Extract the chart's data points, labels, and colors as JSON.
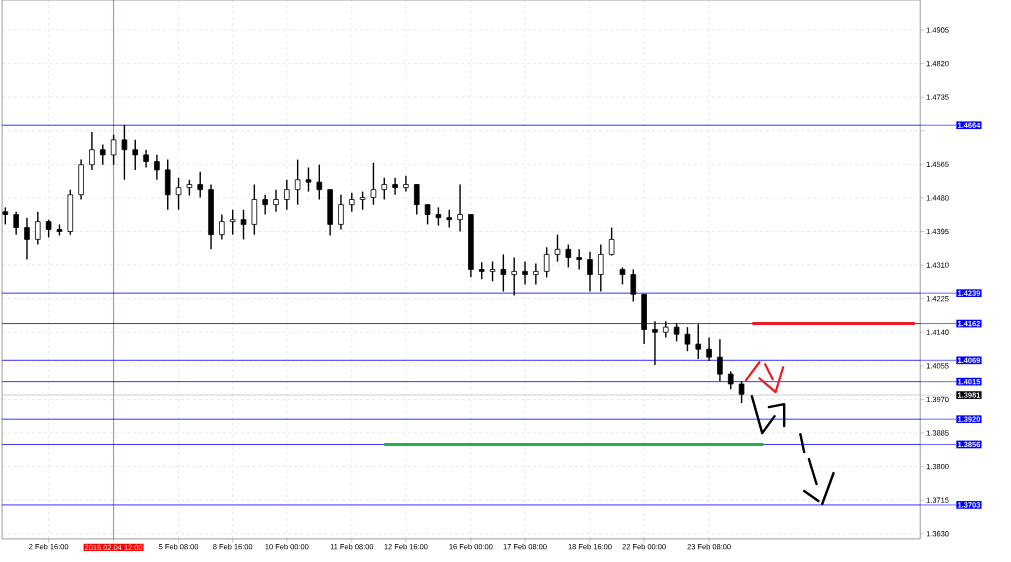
{
  "chart_data": {
    "type": "candlestick",
    "color": "#000000",
    "categories": [
      null,
      null,
      null,
      null,
      "2 Feb 16:00",
      null,
      null,
      null,
      null,
      null,
      "2016.02.04 12:00",
      null,
      null,
      null,
      null,
      null,
      "5 Feb 08:00",
      null,
      null,
      null,
      null,
      "8 Feb 16:00",
      null,
      null,
      null,
      null,
      "10 Feb 00:00",
      null,
      null,
      null,
      null,
      null,
      "11 Feb 08:00",
      null,
      null,
      null,
      null,
      "12 Feb 16:00",
      null,
      null,
      null,
      null,
      null,
      "16 Feb 00:00",
      null,
      null,
      null,
      null,
      "17 Feb 08:00",
      null,
      null,
      null,
      null,
      null,
      "18 Feb 16:00",
      null,
      null,
      null,
      null,
      "22 Feb 00:00",
      null,
      null,
      null,
      null,
      null,
      "23 Feb 08:00",
      null,
      null,
      null,
      null,
      null,
      null,
      null,
      null,
      null,
      null,
      null,
      null,
      null,
      null,
      null,
      null,
      null,
      null,
      null
    ],
    "ohlc": [
      [
        1.4445,
        1.4456,
        1.4413,
        1.4438
      ],
      [
        1.4438,
        1.4445,
        1.4387,
        1.4405
      ],
      [
        1.4405,
        1.443,
        1.4324,
        1.4375
      ],
      [
        1.4375,
        1.4445,
        1.4362,
        1.442
      ],
      [
        1.442,
        1.4425,
        1.438,
        1.44
      ],
      [
        1.44,
        1.4413,
        1.4385,
        1.4395
      ],
      [
        1.4395,
        1.4501,
        1.4387,
        1.4488
      ],
      [
        1.4488,
        1.4577,
        1.4476,
        1.4564
      ],
      [
        1.4564,
        1.4647,
        1.4551,
        1.4602
      ],
      [
        1.4602,
        1.4615,
        1.4564,
        1.4589
      ],
      [
        1.4589,
        1.464,
        1.4564,
        1.4627
      ],
      [
        1.4627,
        1.4665,
        1.4526,
        1.4602
      ],
      [
        1.4602,
        1.4627,
        1.4551,
        1.4589
      ],
      [
        1.4589,
        1.4602,
        1.4557,
        1.4572
      ],
      [
        1.4572,
        1.4589,
        1.4526,
        1.4551
      ],
      [
        1.4551,
        1.4577,
        1.445,
        1.4488
      ],
      [
        1.4488,
        1.4531,
        1.445,
        1.4506
      ],
      [
        1.4506,
        1.4526,
        1.4486,
        1.4514
      ],
      [
        1.4514,
        1.4546,
        1.4481,
        1.4501
      ],
      [
        1.4501,
        1.4514,
        1.435,
        1.4387
      ],
      [
        1.4387,
        1.4438,
        1.4375,
        1.442
      ],
      [
        1.442,
        1.445,
        1.4387,
        1.4425
      ],
      [
        1.4425,
        1.445,
        1.4375,
        1.4413
      ],
      [
        1.4413,
        1.4514,
        1.4387,
        1.4476
      ],
      [
        1.4476,
        1.4488,
        1.4438,
        1.4463
      ],
      [
        1.4463,
        1.4501,
        1.4445,
        1.4476
      ],
      [
        1.4476,
        1.4526,
        1.445,
        1.4501
      ],
      [
        1.4501,
        1.4577,
        1.4463,
        1.4526
      ],
      [
        1.4526,
        1.4557,
        1.4496,
        1.452
      ],
      [
        1.452,
        1.4564,
        1.4476,
        1.4501
      ],
      [
        1.4501,
        1.4501,
        1.4385,
        1.4413
      ],
      [
        1.4413,
        1.4488,
        1.44,
        1.4463
      ],
      [
        1.4463,
        1.4493,
        1.4445,
        1.4476
      ],
      [
        1.4476,
        1.4496,
        1.445,
        1.4481
      ],
      [
        1.4481,
        1.4569,
        1.4463,
        1.4501
      ],
      [
        1.4501,
        1.4531,
        1.4476,
        1.4514
      ],
      [
        1.4514,
        1.4531,
        1.4488,
        1.4506
      ],
      [
        1.4506,
        1.4536,
        1.4496,
        1.4514
      ],
      [
        1.4514,
        1.4514,
        1.4438,
        1.4463
      ],
      [
        1.4463,
        1.4463,
        1.4413,
        1.4438
      ],
      [
        1.4438,
        1.4456,
        1.441,
        1.443
      ],
      [
        1.443,
        1.445,
        1.4405,
        1.4425
      ],
      [
        1.4425,
        1.4514,
        1.4395,
        1.4438
      ],
      [
        1.4438,
        1.4438,
        1.4279,
        1.4299
      ],
      [
        1.4299,
        1.4317,
        1.4274,
        1.4294
      ],
      [
        1.4294,
        1.4319,
        1.4269,
        1.4299
      ],
      [
        1.4299,
        1.4337,
        1.4243,
        1.4286
      ],
      [
        1.4286,
        1.4329,
        1.4233,
        1.4294
      ],
      [
        1.4294,
        1.4319,
        1.4261,
        1.4286
      ],
      [
        1.4286,
        1.4314,
        1.4261,
        1.4294
      ],
      [
        1.4294,
        1.4355,
        1.4279,
        1.4337
      ],
      [
        1.4337,
        1.4387,
        1.4319,
        1.435
      ],
      [
        1.435,
        1.4362,
        1.4304,
        1.4329
      ],
      [
        1.4329,
        1.435,
        1.4299,
        1.4324
      ],
      [
        1.4324,
        1.4344,
        1.4243,
        1.4286
      ],
      [
        1.4286,
        1.4362,
        1.4243,
        1.4337
      ],
      [
        1.4337,
        1.4405,
        1.4334,
        1.4375
      ],
      [
        1.4299,
        1.4304,
        1.4261,
        1.4286
      ],
      [
        1.4286,
        1.4299,
        1.4218,
        1.4236
      ],
      [
        1.4236,
        1.4236,
        1.411,
        1.4147
      ],
      [
        1.4147,
        1.4168,
        1.4057,
        1.414
      ],
      [
        1.414,
        1.4168,
        1.4127,
        1.4153
      ],
      [
        1.4153,
        1.4163,
        1.4117,
        1.4135
      ],
      [
        1.4135,
        1.4153,
        1.4092,
        1.411
      ],
      [
        1.411,
        1.416,
        1.4072,
        1.4097
      ],
      [
        1.4097,
        1.4127,
        1.4067,
        1.4077
      ],
      [
        1.4077,
        1.4122,
        1.4016,
        1.4034
      ],
      [
        1.4034,
        1.4041,
        1.3996,
        1.4009
      ],
      [
        1.4009,
        1.4016,
        1.3961,
        1.3983
      ],
      null,
      null,
      null,
      null,
      null,
      null,
      null,
      null,
      null,
      null,
      null,
      null,
      null,
      null,
      null,
      null
    ],
    "series": [
      {
        "type": "line",
        "color": "#ed1c24",
        "values": [
          null,
          null,
          null,
          null,
          null,
          null,
          null,
          null,
          null,
          null,
          null,
          null,
          null,
          null,
          null,
          null,
          null,
          null,
          null,
          null,
          null,
          null,
          null,
          null,
          null,
          null,
          null,
          null,
          null,
          null,
          null,
          null,
          null,
          null,
          null,
          null,
          null,
          null,
          null,
          null,
          null,
          null,
          null,
          null,
          null,
          null,
          null,
          null,
          null,
          null,
          null,
          null,
          null,
          null,
          null,
          null,
          null,
          null,
          null,
          null,
          null,
          null,
          null,
          null,
          null,
          null,
          null,
          null,
          null,
          1.4162,
          1.4162,
          1.4162,
          1.4162,
          1.4162,
          1.4162,
          1.4162,
          1.4162,
          1.4162,
          1.4162,
          1.4162,
          1.4162,
          1.4162,
          1.4162,
          1.4162,
          1.4162
        ]
      },
      {
        "type": "line",
        "color": "#22b14c",
        "values": [
          null,
          null,
          null,
          null,
          null,
          null,
          null,
          null,
          null,
          null,
          null,
          null,
          null,
          null,
          null,
          null,
          null,
          null,
          null,
          null,
          null,
          null,
          null,
          null,
          null,
          null,
          null,
          null,
          null,
          null,
          null,
          null,
          null,
          null,
          null,
          1.3856,
          1.3856,
          1.3856,
          1.3856,
          1.3856,
          1.3856,
          1.3856,
          1.3856,
          1.3856,
          1.3856,
          1.3856,
          1.3856,
          1.3856,
          1.3856,
          1.3856,
          1.3856,
          1.3856,
          1.3856,
          1.3856,
          1.3856,
          1.3856,
          1.3856,
          1.3856,
          1.3856,
          1.3856,
          1.3856,
          1.3856,
          1.3856,
          1.3856,
          1.3856,
          1.3856,
          1.3856,
          1.3856,
          1.3856,
          1.3856,
          1.3856,
          null,
          null,
          null,
          null,
          null,
          null,
          null,
          null,
          null,
          null,
          null,
          null,
          null,
          null
        ]
      }
    ],
    "ylim": [
      1.3617,
      1.4981
    ],
    "yticks": [
      {
        "value": 1.363,
        "label": "1.3630"
      },
      {
        "value": 1.3715,
        "label": "1.3715"
      },
      {
        "value": 1.38,
        "label": "1.3800"
      },
      {
        "value": 1.3885,
        "label": "1.3885"
      },
      {
        "value": 1.397,
        "label": "1.3970"
      },
      {
        "value": 1.4055,
        "label": "1.4055"
      },
      {
        "value": 1.414,
        "label": "1.4140"
      },
      {
        "value": 1.4225,
        "label": "1.4225"
      },
      {
        "value": 1.431,
        "label": "1.4310"
      },
      {
        "value": 1.4395,
        "label": "1.4395"
      },
      {
        "value": 1.448,
        "label": "1.4480"
      },
      {
        "value": 1.4565,
        "label": "1.4565"
      },
      {
        "value": 1.465,
        "label": null
      },
      {
        "value": 1.4735,
        "label": "1.4735"
      },
      {
        "value": 1.482,
        "label": "1.4820"
      },
      {
        "value": 1.4905,
        "label": "1.4905"
      }
    ],
    "grid": true,
    "ref_lines": [
      {
        "axis": "x",
        "value": "2016.02.04 12:00",
        "color": "#ff0000"
      },
      {
        "axis": "y",
        "value": 1.4664,
        "label": "1.4664",
        "color": "#0000ff"
      },
      {
        "axis": "y",
        "value": 1.4239,
        "label": "1.4239",
        "color": "#0000ff"
      },
      {
        "axis": "y",
        "value": 1.4162,
        "label": "1.4162",
        "color": "#0000ff"
      },
      {
        "axis": "y",
        "value": 1.4069,
        "label": "1.4069",
        "color": "#0000ff"
      },
      {
        "axis": "y",
        "value": 1.4015,
        "label": "1.4015",
        "color": "#0000ff"
      },
      {
        "axis": "y",
        "value": 1.3981,
        "label": "1.3981",
        "color": "#c0c0c0"
      },
      {
        "axis": "y",
        "value": 1.392,
        "label": "1.3920",
        "color": "#0000ff"
      },
      {
        "axis": "y",
        "value": 1.3856,
        "label": "1.3856",
        "color": "#0000ff"
      },
      {
        "axis": "y",
        "value": 1.3703,
        "label": "1.3703",
        "color": "#0000ff"
      }
    ]
  }
}
